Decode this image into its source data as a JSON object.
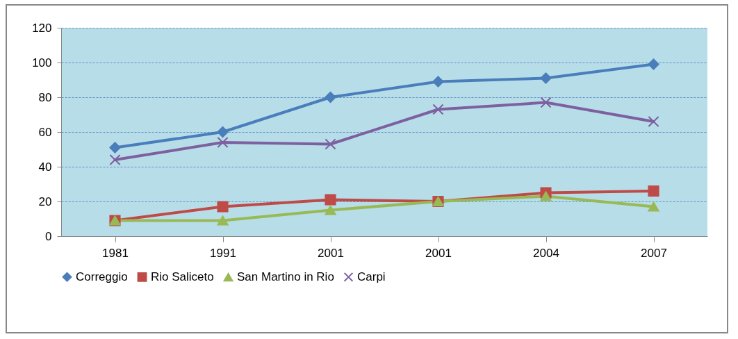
{
  "chart_data": {
    "type": "line",
    "categories": [
      "1981",
      "1991",
      "2001",
      "2001",
      "2004",
      "2007"
    ],
    "series": [
      {
        "name": "Correggio",
        "color": "#4a7ebb",
        "marker": "diamond",
        "values": [
          51,
          60,
          80,
          89,
          91,
          99
        ]
      },
      {
        "name": "Rio Saliceto",
        "color": "#be4b48",
        "marker": "square",
        "values": [
          9,
          17,
          21,
          20,
          25,
          26
        ]
      },
      {
        "name": "San Martino in Rio",
        "color": "#98b954",
        "marker": "triangle",
        "values": [
          9,
          9,
          15,
          20,
          23,
          17
        ]
      },
      {
        "name": "Carpi",
        "color": "#7d60a0",
        "marker": "cross",
        "values": [
          44,
          54,
          53,
          73,
          77,
          66
        ]
      }
    ],
    "ylim": [
      0,
      120
    ],
    "yticks": [
      0,
      20,
      40,
      60,
      80,
      100,
      120
    ],
    "grid": "y",
    "legend": "bottom"
  }
}
